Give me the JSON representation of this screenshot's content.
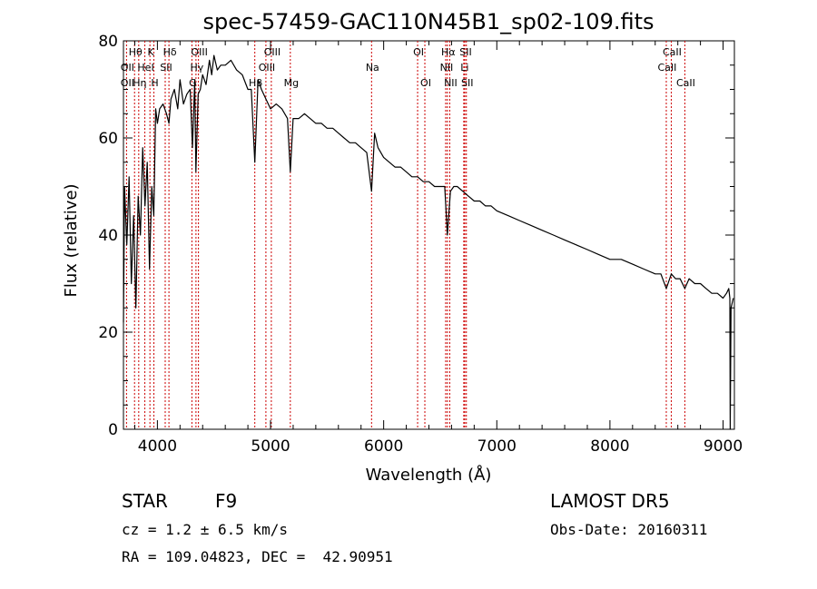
{
  "chart_data": {
    "type": "line",
    "title": "spec-57459-GAC110N45B1_sp02-109.fits",
    "xlabel": "Wavelength (Å)",
    "ylabel": "Flux (relative)",
    "xlim": [
      3700,
      9100
    ],
    "ylim": [
      0,
      80
    ],
    "xticks": [
      4000,
      5000,
      6000,
      7000,
      8000,
      9000
    ],
    "yticks": [
      0,
      20,
      40,
      60,
      80
    ],
    "grid": false,
    "line_color": "#000000",
    "marker_color": "#cc0000",
    "series": [
      {
        "x": [
          3700,
          3710,
          3730,
          3750,
          3770,
          3790,
          3810,
          3830,
          3850,
          3870,
          3890,
          3910,
          3930,
          3950,
          3968,
          3985,
          4000,
          4020,
          4050,
          4080,
          4102,
          4120,
          4150,
          4180,
          4200,
          4230,
          4260,
          4290,
          4310,
          4330,
          4340,
          4360,
          4380,
          4400,
          4430,
          4460,
          4480,
          4500,
          4530,
          4560,
          4600,
          4650,
          4700,
          4750,
          4800,
          4830,
          4861,
          4890,
          4920,
          4960,
          5000,
          5050,
          5100,
          5150,
          5175,
          5200,
          5250,
          5300,
          5350,
          5400,
          5450,
          5500,
          5550,
          5600,
          5650,
          5700,
          5750,
          5800,
          5850,
          5893,
          5920,
          5950,
          6000,
          6050,
          6100,
          6150,
          6200,
          6250,
          6300,
          6350,
          6400,
          6450,
          6500,
          6540,
          6563,
          6590,
          6620,
          6650,
          6700,
          6750,
          6800,
          6850,
          6900,
          6950,
          7000,
          7100,
          7200,
          7300,
          7400,
          7500,
          7600,
          7700,
          7800,
          7900,
          8000,
          8100,
          8200,
          8300,
          8400,
          8450,
          8498,
          8542,
          8580,
          8620,
          8662,
          8700,
          8750,
          8800,
          8850,
          8900,
          8950,
          9000,
          9030,
          9050,
          9060,
          9063,
          9070,
          9090
        ],
        "y": [
          22,
          50,
          38,
          52,
          30,
          44,
          25,
          48,
          40,
          58,
          46,
          55,
          33,
          50,
          44,
          66,
          63,
          66,
          67,
          65,
          63,
          68,
          70,
          66,
          72,
          67,
          69,
          70,
          58,
          72,
          53,
          69,
          70,
          73,
          71,
          76,
          73,
          77,
          74,
          75,
          75,
          76,
          74,
          73,
          70,
          70,
          55,
          72,
          70,
          68,
          66,
          67,
          66,
          64,
          53,
          64,
          64,
          65,
          64,
          63,
          63,
          62,
          62,
          61,
          60,
          59,
          59,
          58,
          57,
          49,
          61,
          58,
          56,
          55,
          54,
          54,
          53,
          52,
          52,
          51,
          51,
          50,
          50,
          50,
          40,
          49,
          50,
          50,
          49,
          48,
          47,
          47,
          46,
          46,
          45,
          44,
          43,
          42,
          41,
          40,
          39,
          38,
          37,
          36,
          35,
          35,
          34,
          33,
          32,
          32,
          29,
          32,
          31,
          31,
          29,
          31,
          30,
          30,
          29,
          28,
          28,
          27,
          28,
          29,
          27,
          0,
          25,
          27
        ]
      }
    ],
    "lines": [
      {
        "label": "OII",
        "x": 3727,
        "row": 2
      },
      {
        "label": "OII",
        "x": 3727,
        "row": 3
      },
      {
        "label": "Hθ",
        "x": 3798,
        "row": 1
      },
      {
        "label": "Hη",
        "x": 3835,
        "row": 3
      },
      {
        "label": "HeI",
        "x": 3889,
        "row": 2
      },
      {
        "label": "K",
        "x": 3934,
        "row": 1
      },
      {
        "label": "SII",
        "x": 4069,
        "row": 2
      },
      {
        "label": "H",
        "x": 3969,
        "row": 3
      },
      {
        "label": "Hδ",
        "x": 4102,
        "row": 1
      },
      {
        "label": "OIII",
        "x": 4363,
        "row": 1
      },
      {
        "label": "Hγ",
        "x": 4341,
        "row": 2
      },
      {
        "label": "G",
        "x": 4305,
        "row": 3
      },
      {
        "label": "OIII",
        "x": 5007,
        "row": 1
      },
      {
        "label": "OIII",
        "x": 4959,
        "row": 2
      },
      {
        "label": "Hβ",
        "x": 4861,
        "row": 3
      },
      {
        "label": "Mg",
        "x": 5175,
        "row": 3
      },
      {
        "label": "Na",
        "x": 5893,
        "row": 2
      },
      {
        "label": "OI",
        "x": 6300,
        "row": 1
      },
      {
        "label": "OI",
        "x": 6364,
        "row": 3
      },
      {
        "label": "Hα",
        "x": 6563,
        "row": 1
      },
      {
        "label": "NII",
        "x": 6548,
        "row": 2
      },
      {
        "label": "NII",
        "x": 6584,
        "row": 3
      },
      {
        "label": "SII",
        "x": 6717,
        "row": 1
      },
      {
        "label": "Li",
        "x": 6708,
        "row": 2
      },
      {
        "label": "SII",
        "x": 6731,
        "row": 3
      },
      {
        "label": "CaII",
        "x": 8498,
        "row": 2
      },
      {
        "label": "CaII",
        "x": 8542,
        "row": 1
      },
      {
        "label": "CaII",
        "x": 8662,
        "row": 3
      }
    ]
  },
  "info": {
    "obj_class": "STAR",
    "subclass": "F9",
    "survey": "LAMOST DR5",
    "cz": "cz = 1.2 ± 6.5 km/s",
    "obs_date": "Obs-Date: 20160311",
    "coords": "RA = 109.04823, DEC =  42.90951"
  }
}
